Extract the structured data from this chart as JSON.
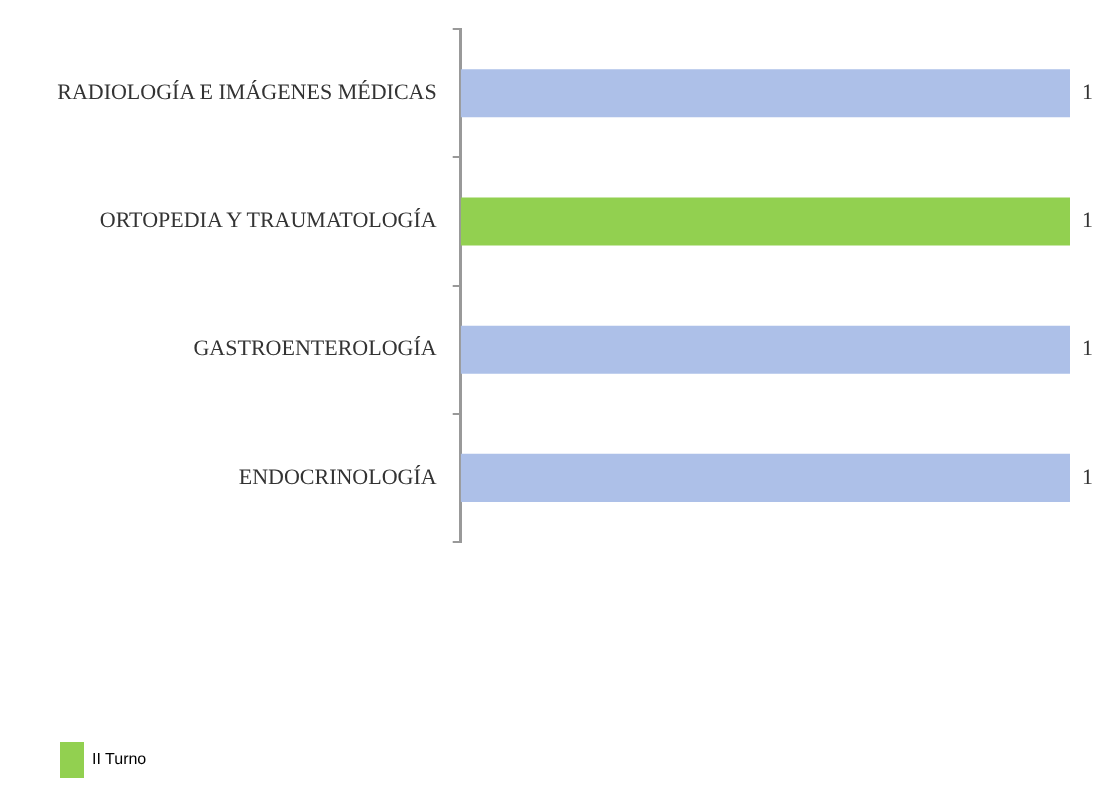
{
  "chart_data": {
    "type": "bar",
    "orientation": "horizontal",
    "categories": [
      "RADIOLOGÍA E IMÁGENES MÉDICAS",
      "ORTOPEDIA Y TRAUMATOLOGÍA",
      "GASTROENTEROLOGÍA",
      "ENDOCRINOLOGÍA"
    ],
    "series": [
      {
        "name": "II Turno",
        "color": "#92d050",
        "colors": [
          "#adc0e8",
          "#92d050",
          "#adc0e8",
          "#adc0e8"
        ],
        "values": [
          1,
          1,
          1,
          1
        ]
      }
    ],
    "tick_labels": "y",
    "data_labels": true,
    "legend": "bottom left",
    "grid": false
  }
}
